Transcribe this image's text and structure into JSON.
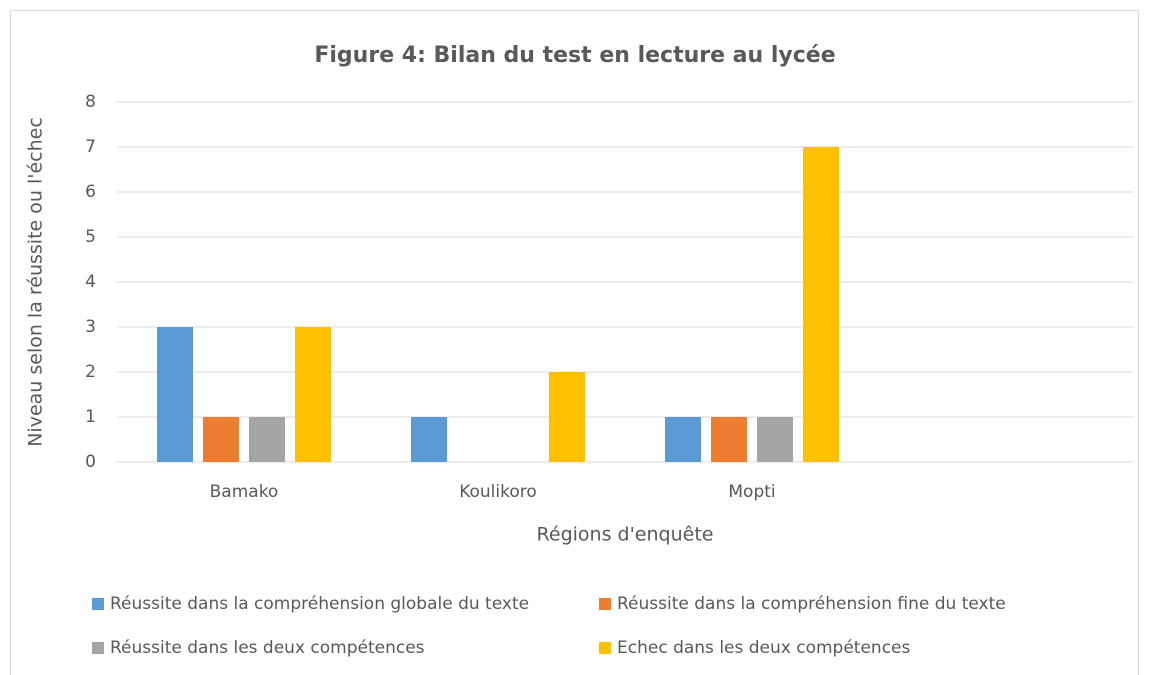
{
  "chart_data": {
    "type": "bar",
    "title": "Figure 4: Bilan du test en lecture au lycée",
    "x_label": "Régions d'enquête",
    "y_label": "Niveau selon la réussite ou l'échec",
    "categories": [
      "Bamako",
      "Koulikoro",
      "Mopti",
      null
    ],
    "series": [
      {
        "name": "Réussite dans la compréhension globale du texte",
        "color": "#5b9bd5",
        "values": [
          3,
          1,
          1,
          null
        ]
      },
      {
        "name": "Réussite dans la compréhension fine du texte",
        "color": "#ed7d31",
        "values": [
          1,
          0,
          1,
          null
        ]
      },
      {
        "name": "Réussite dans  les deux compétences",
        "color": "#a5a5a5",
        "values": [
          1,
          0,
          1,
          null
        ]
      },
      {
        "name": "Echec dans les deux compétences",
        "color": "#ffc000",
        "values": [
          3,
          2,
          7,
          null
        ]
      }
    ],
    "ylim": [
      0,
      8
    ],
    "yticks": [
      0,
      1,
      2,
      3,
      4,
      5,
      6,
      7,
      8
    ],
    "grid": true,
    "legend": "bottom"
  }
}
